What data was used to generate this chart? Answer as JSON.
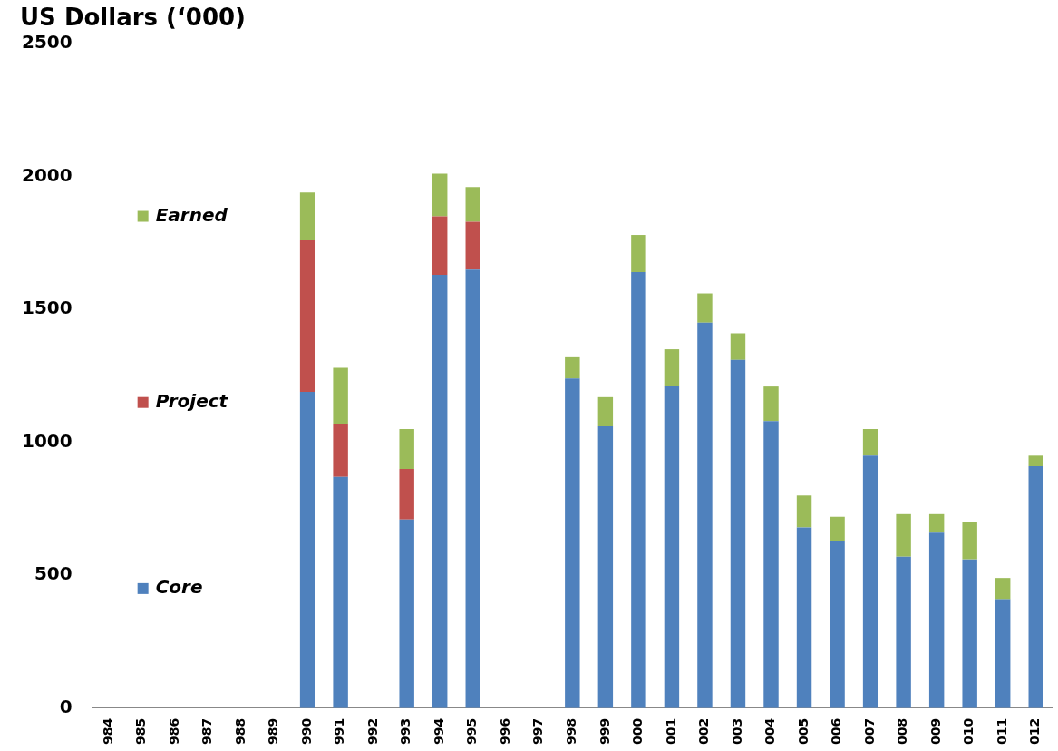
{
  "chart_data": {
    "type": "bar",
    "stacked": true,
    "ylabel": "US Dollars (‘000)",
    "categories": [
      "984",
      "985",
      "986",
      "987",
      "988",
      "989",
      "990",
      "991",
      "992",
      "993",
      "994",
      "995",
      "996",
      "997",
      "998",
      "999",
      "000",
      "001",
      "002",
      "003",
      "004",
      "005",
      "006",
      "007",
      "008",
      "009",
      "010",
      "011",
      "012"
    ],
    "series": [
      {
        "name": "Core",
        "color": "#4f81bd",
        "values": [
          null,
          null,
          null,
          null,
          null,
          null,
          1190,
          870,
          null,
          710,
          1630,
          1650,
          null,
          null,
          1240,
          1060,
          1640,
          1210,
          1450,
          1310,
          1080,
          680,
          630,
          950,
          570,
          660,
          560,
          410,
          910
        ]
      },
      {
        "name": "Project",
        "color": "#c0504d",
        "values": [
          null,
          null,
          null,
          null,
          null,
          null,
          570,
          200,
          null,
          190,
          220,
          180,
          null,
          null,
          null,
          null,
          null,
          null,
          null,
          null,
          null,
          null,
          null,
          null,
          null,
          null,
          null,
          null,
          null
        ]
      },
      {
        "name": "Earned",
        "color": "#9bbb59",
        "values": [
          null,
          null,
          null,
          null,
          null,
          null,
          180,
          210,
          null,
          150,
          160,
          130,
          null,
          null,
          80,
          110,
          140,
          140,
          110,
          100,
          130,
          120,
          90,
          100,
          160,
          70,
          140,
          80,
          40
        ]
      }
    ],
    "ylim": [
      0,
      2500
    ],
    "yticks": [
      0,
      500,
      1000,
      1500,
      2000,
      2500
    ],
    "grid": false,
    "legend": "left"
  }
}
